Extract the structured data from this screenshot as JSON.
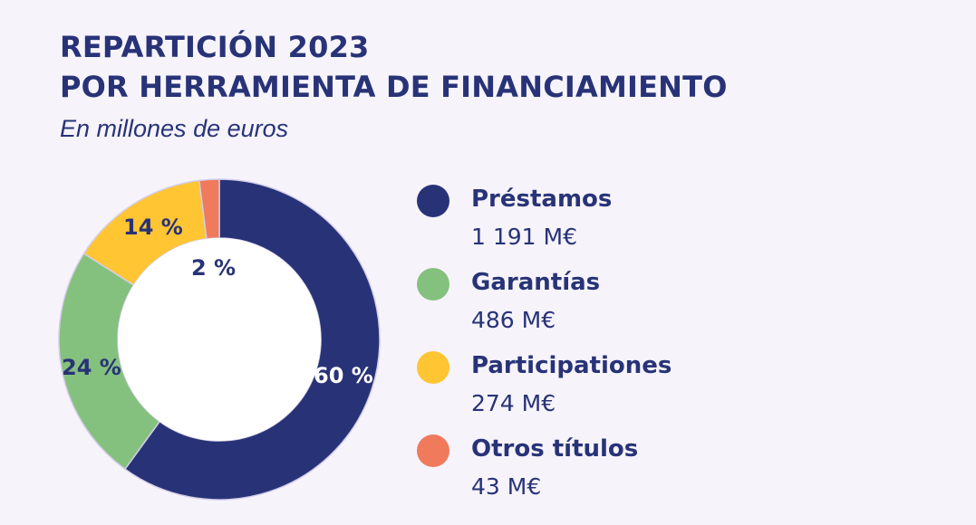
{
  "header": {
    "title_line1": "REPARTICIÓN 2023",
    "title_line2": "POR HERRAMIENTA DE FINANCIAMIENTO",
    "subtitle": "En millones de euros"
  },
  "chart_data": {
    "type": "pie",
    "variant": "donut",
    "title": "REPARTICIÓN 2023 POR HERRAMIENTA DE FINANCIAMIENTO",
    "subtitle": "En millones de euros",
    "unit": "M€",
    "categories": [
      "Préstamos",
      "Garantías",
      "Participationes",
      "Otros títulos"
    ],
    "values": [
      1191,
      486,
      274,
      43
    ],
    "percent_labels": [
      "60 %",
      "24 %",
      "14 %",
      "2 %"
    ],
    "percentages": [
      60,
      24,
      14,
      2
    ],
    "colors": [
      "#283377",
      "#85c17e",
      "#ffc532",
      "#f07a5c"
    ],
    "start_angle": "12 o'clock",
    "direction": "clockwise",
    "legend_position": "right"
  },
  "legend": {
    "items": [
      {
        "name": "Préstamos",
        "value": "1 191 M€",
        "color": "#283377"
      },
      {
        "name": "Garantías",
        "value": "486 M€",
        "color": "#85c17e"
      },
      {
        "name": "Participationes",
        "value": "274 M€",
        "color": "#ffc532"
      },
      {
        "name": "Otros títulos",
        "value": "43 M€",
        "color": "#f07a5c"
      }
    ]
  },
  "slice_labels": [
    {
      "text": "60 %",
      "color": "#ffffff"
    },
    {
      "text": "24 %",
      "color": "#283377"
    },
    {
      "text": "14 %",
      "color": "#283377"
    },
    {
      "text": "2 %",
      "color": "#283377"
    }
  ],
  "colors": {
    "background": "#f6f3fb",
    "text": "#283377",
    "hole": "#ffffff",
    "segment_border": "#d3cde8"
  }
}
